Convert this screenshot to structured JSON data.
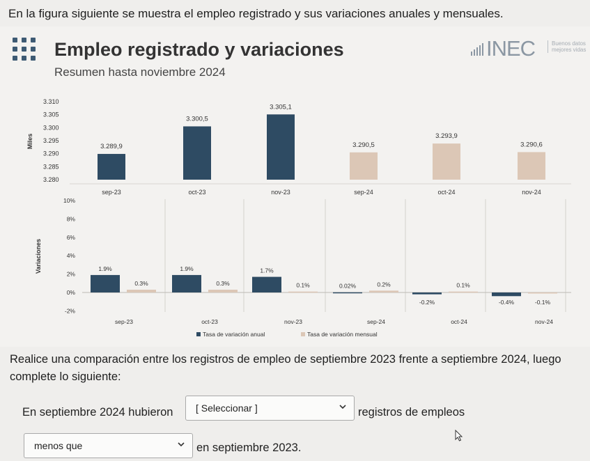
{
  "intro_text": "En la figura siguiente se muestra el empleo registrado y sus variaciones anuales y mensuales.",
  "figure": {
    "title": "Empleo registrado y variaciones",
    "subtitle": "Resumen hasta noviembre 2024",
    "logo_text": "INEC",
    "logo_tagline_1": "Buenos datos",
    "logo_tagline_2": "mejores vidas",
    "dots_icon": "grid-dots-icon"
  },
  "chart_data": [
    {
      "type": "bar",
      "ylabel": "Miles",
      "ylim": [
        3280,
        3310
      ],
      "yticks": [
        "3.310",
        "3.305",
        "3.300",
        "3.295",
        "3.290",
        "3.285",
        "3.280"
      ],
      "categories": [
        "sep-23",
        "oct-23",
        "nov-23",
        "sep-24",
        "oct-24",
        "nov-24"
      ],
      "values": [
        3289.9,
        3300.5,
        3305.1,
        3290.5,
        3293.9,
        3290.6
      ],
      "value_labels": [
        "3.289,9",
        "3.300,5",
        "3.305,1",
        "3.290,5",
        "3.293,9",
        "3.290,6"
      ],
      "colors": [
        "#2e4b63",
        "#2e4b63",
        "#2e4b63",
        "#dcc7b6",
        "#dcc7b6",
        "#dcc7b6"
      ]
    },
    {
      "type": "bar",
      "ylabel": "Variaciones",
      "ylim": [
        -2,
        10
      ],
      "yticks": [
        "10%",
        "8%",
        "6%",
        "4%",
        "2%",
        "0%",
        "-2%"
      ],
      "categories": [
        "sep-23",
        "oct-23",
        "nov-23",
        "sep-24",
        "oct-24",
        "nov-24"
      ],
      "series": [
        {
          "name": "Tasa de variación anual",
          "color": "#2e4b63",
          "values": [
            1.9,
            1.9,
            1.7,
            0.02,
            -0.2,
            -0.4
          ],
          "labels": [
            "1.9%",
            "1.9%",
            "1.7%",
            "0.02%",
            "-0.2%",
            "-0.4%"
          ]
        },
        {
          "name": "Tasa de variación mensual",
          "color": "#dcc7b6",
          "values": [
            0.3,
            0.3,
            0.1,
            0.2,
            0.1,
            -0.1
          ],
          "labels": [
            "0.3%",
            "0.3%",
            "0.1%",
            "0.2%",
            "0.1%",
            "-0.1%"
          ]
        }
      ]
    }
  ],
  "question": "Realice una comparación entre los registros de empleo de septiembre 2023 frente a septiembre 2024, luego complete lo siguiente:",
  "sentence1_start": "En septiembre 2024 hubieron",
  "sentence1_end": "registros de empleos",
  "select1_value": "[ Seleccionar ]",
  "select2_value": "menos que",
  "sentence2_end": "en septiembre 2023."
}
